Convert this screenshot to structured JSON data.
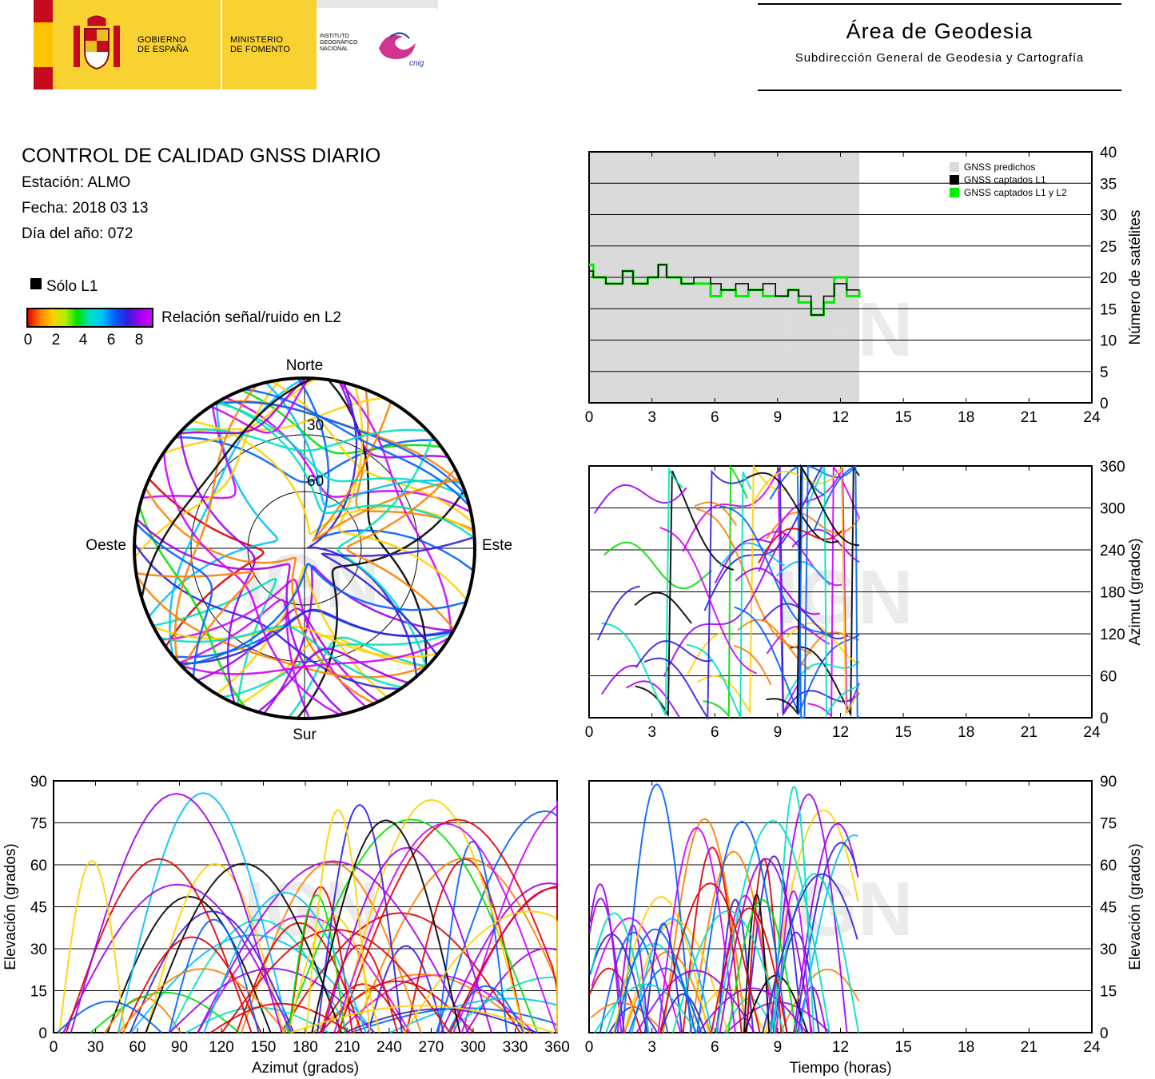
{
  "header": {
    "gobierno": [
      "GOBIERNO",
      "DE ESPAÑA"
    ],
    "ministerio": [
      "MINISTERIO",
      "DE FOMENTO"
    ],
    "instituto": [
      "INSTITUTO",
      "GEOGRÁFICO",
      "NACIONAL"
    ],
    "cnig": "cnig",
    "area_title": "Área de Geodesia",
    "area_subtitle": "Subdirección General de Geodesia y Cartografía"
  },
  "report": {
    "title": "CONTROL DE CALIDAD GNSS DIARIO",
    "station": "Estación: ALMO",
    "date": "Fecha: 2018 03 13",
    "doy": "Día del año: 072"
  },
  "legend": {
    "l1_only": "Sólo L1",
    "snr_label": "Relación señal/ruido en L2",
    "snr_ticks": [
      "0",
      "2",
      "4",
      "6",
      "8"
    ],
    "snr_colors": [
      "#e00000",
      "#ff8000",
      "#ffd000",
      "#00e000",
      "#00e0c0",
      "#00c0ff",
      "#0060ff",
      "#3020e0",
      "#a000f0",
      "#d000ff"
    ]
  },
  "watermark": "IGN",
  "chart_data": [
    {
      "id": "satellite_count",
      "type": "line",
      "ylabel": "Número de satélites",
      "xlim": [
        0,
        24
      ],
      "ylim": [
        0,
        40
      ],
      "xticks": [
        "0",
        "3",
        "6",
        "9",
        "12",
        "15",
        "18",
        "21",
        "24"
      ],
      "yticks": [
        "0",
        "5",
        "10",
        "15",
        "20",
        "25",
        "30",
        "35",
        "40"
      ],
      "legend": [
        "GNSS predichos",
        "GNSS captados L1",
        "GNSS captados L1 y L2"
      ],
      "legend_placement": "top-right",
      "predicted": {
        "x": [
          0,
          12.9
        ],
        "value": 40
      },
      "series": [
        {
          "name": "GNSS captados L1",
          "color": "#000000",
          "x": [
            0,
            0.2,
            0.8,
            1.6,
            2.1,
            2.8,
            3.3,
            3.7,
            4.4,
            5.0,
            5.8,
            6.3,
            7.0,
            7.6,
            8.3,
            8.9,
            9.5,
            10.0,
            10.6,
            11.2,
            11.7,
            12.3,
            12.9
          ],
          "y": [
            21,
            20,
            19,
            21,
            19,
            20,
            22,
            20,
            19,
            20,
            19,
            18,
            19,
            18,
            19,
            17,
            18,
            17,
            14,
            17,
            19,
            18,
            18
          ]
        },
        {
          "name": "GNSS captados L1 y L2",
          "color": "#00ee00",
          "x": [
            0,
            0.2,
            0.8,
            1.6,
            2.1,
            2.8,
            3.3,
            3.7,
            4.4,
            5.0,
            5.8,
            6.3,
            7.0,
            7.6,
            8.3,
            8.9,
            9.5,
            10.0,
            10.6,
            11.2,
            11.7,
            12.3,
            12.9
          ],
          "y": [
            22,
            20,
            19,
            21,
            19,
            20,
            22,
            20,
            19,
            19,
            17,
            18,
            17,
            18,
            17,
            17,
            18,
            16,
            14,
            16,
            20,
            17,
            18
          ]
        }
      ]
    },
    {
      "id": "skyplot",
      "type": "scatter",
      "projection": "polar",
      "directions": {
        "n": "Norte",
        "s": "Sur",
        "w": "Oeste",
        "e": "Este"
      },
      "rings": [
        "30",
        "60"
      ],
      "color_scale": "snr_l2"
    },
    {
      "id": "azimuth_time",
      "type": "scatter",
      "ylabel": "Azimut (grados)",
      "xlim": [
        0,
        24
      ],
      "ylim": [
        0,
        360
      ],
      "xticks": [
        "0",
        "3",
        "6",
        "9",
        "12",
        "15",
        "18",
        "21",
        "24"
      ],
      "yticks": [
        "0",
        "60",
        "120",
        "180",
        "240",
        "300",
        "360"
      ],
      "data_extent_hours": 12.9
    },
    {
      "id": "elevation_azimuth",
      "type": "scatter",
      "xlabel": "Azimut (grados)",
      "ylabel": "Elevación (grados)",
      "xlim": [
        0,
        360
      ],
      "ylim": [
        0,
        90
      ],
      "xticks": [
        "0",
        "30",
        "60",
        "90",
        "120",
        "150",
        "180",
        "210",
        "240",
        "270",
        "300",
        "330",
        "360"
      ],
      "yticks": [
        "0",
        "15",
        "30",
        "45",
        "60",
        "75",
        "90"
      ]
    },
    {
      "id": "elevation_time",
      "type": "scatter",
      "xlabel": "Tiempo (horas)",
      "ylabel": "Elevación (grados)",
      "xlim": [
        0,
        24
      ],
      "ylim": [
        0,
        90
      ],
      "xticks": [
        "0",
        "3",
        "6",
        "9",
        "12",
        "15",
        "18",
        "21",
        "24"
      ],
      "yticks": [
        "0",
        "15",
        "30",
        "45",
        "60",
        "75",
        "90"
      ],
      "data_extent_hours": 12.9
    }
  ]
}
